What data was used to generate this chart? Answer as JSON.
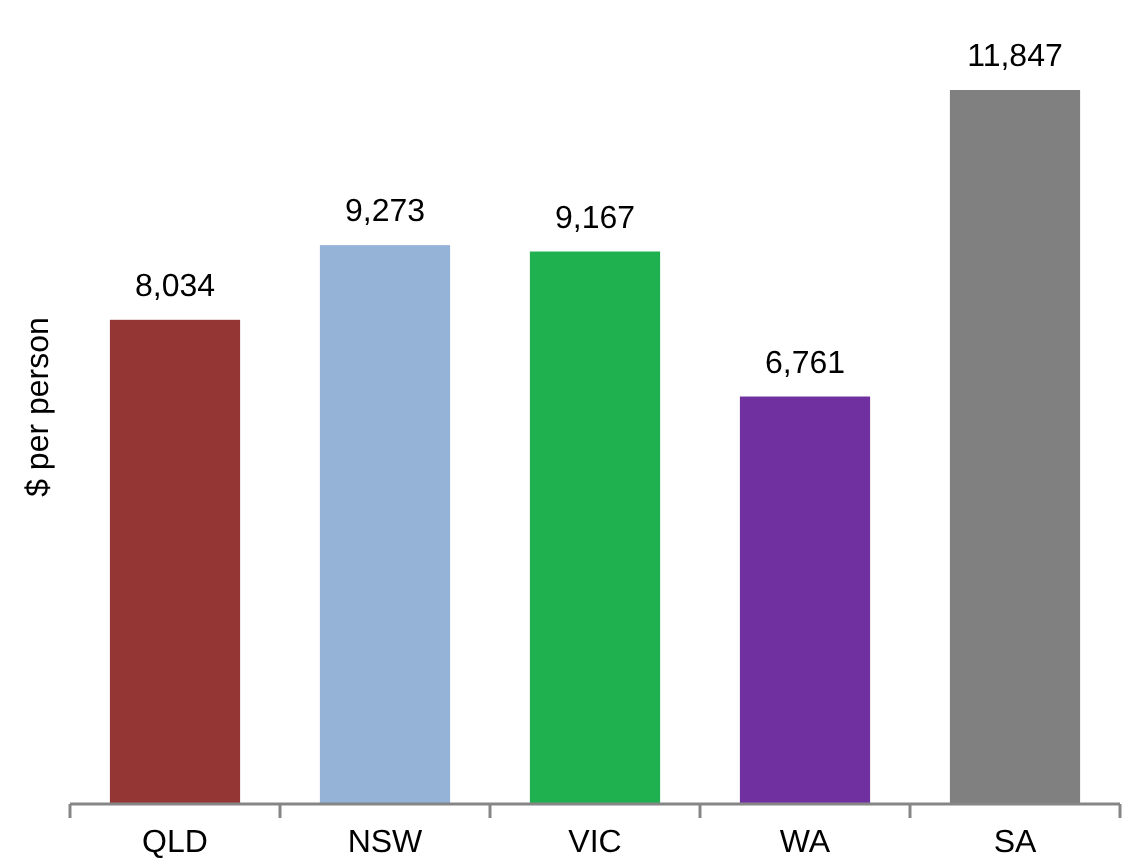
{
  "chart_data": {
    "type": "bar",
    "ylabel": "$ per person",
    "categories": [
      "QLD",
      "NSW",
      "VIC",
      "WA",
      "SA"
    ],
    "values": [
      8034,
      9273,
      9167,
      6761,
      11847
    ],
    "colors": [
      "#943634",
      "#95b3d7",
      "#1fb050",
      "#7030a0",
      "#808080"
    ],
    "value_labels": [
      "8,034",
      "9,273",
      "9,167",
      "6,761",
      "11,847"
    ]
  }
}
